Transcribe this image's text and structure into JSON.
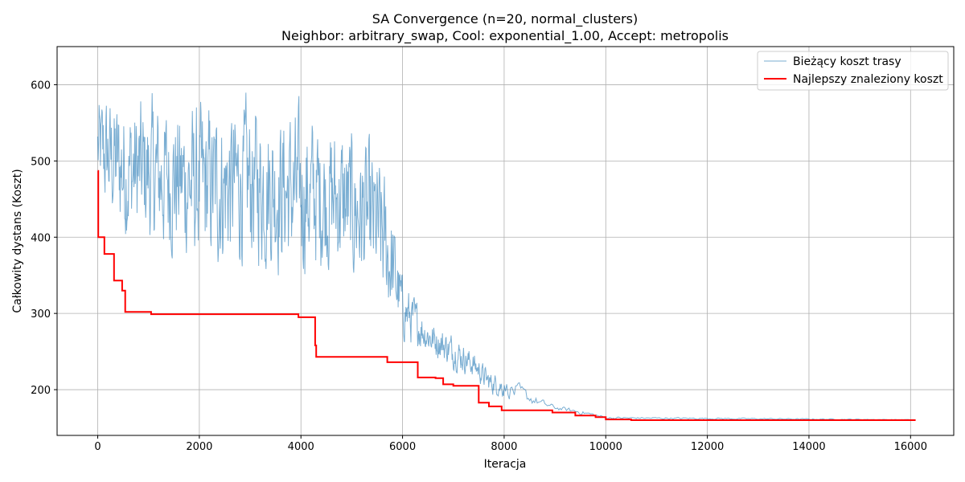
{
  "chart_data": {
    "type": "line",
    "title_line1": "SA Convergence (n=20, normal_clusters)",
    "title_line2": "Neighbor: arbitrary_swap, Cool: exponential_1.00, Accept: metropolis",
    "xlabel": "Iteracja",
    "ylabel": "Całkowity dystans (Koszt)",
    "xlim": [
      -800,
      16850
    ],
    "ylim": [
      140,
      650
    ],
    "xticks": [
      0,
      2000,
      4000,
      6000,
      8000,
      10000,
      12000,
      14000,
      16000
    ],
    "yticks": [
      200,
      300,
      400,
      500,
      600
    ],
    "grid": true,
    "legend_position": "top-right",
    "series": [
      {
        "name": "Bieżący koszt trasy",
        "color": "#1f77b4",
        "style": "thin-noisy",
        "envelope": [
          {
            "x": 0,
            "low": 420,
            "high": 610
          },
          {
            "x": 500,
            "low": 360,
            "high": 620
          },
          {
            "x": 1000,
            "low": 350,
            "high": 615
          },
          {
            "x": 1500,
            "low": 340,
            "high": 612
          },
          {
            "x": 2000,
            "low": 320,
            "high": 610
          },
          {
            "x": 2500,
            "low": 320,
            "high": 612
          },
          {
            "x": 3000,
            "low": 330,
            "high": 612
          },
          {
            "x": 3500,
            "low": 320,
            "high": 608
          },
          {
            "x": 4000,
            "low": 310,
            "high": 600
          },
          {
            "x": 4300,
            "low": 320,
            "high": 590
          },
          {
            "x": 4700,
            "low": 320,
            "high": 580
          },
          {
            "x": 5000,
            "low": 300,
            "high": 575
          },
          {
            "x": 5300,
            "low": 290,
            "high": 560
          },
          {
            "x": 5600,
            "low": 270,
            "high": 530
          },
          {
            "x": 5800,
            "low": 260,
            "high": 460
          },
          {
            "x": 6000,
            "low": 250,
            "high": 360
          },
          {
            "x": 6500,
            "low": 240,
            "high": 300
          },
          {
            "x": 7000,
            "low": 220,
            "high": 280
          },
          {
            "x": 7400,
            "low": 210,
            "high": 255
          },
          {
            "x": 7700,
            "low": 190,
            "high": 230
          },
          {
            "x": 8200,
            "low": 180,
            "high": 215
          },
          {
            "x": 8700,
            "low": 175,
            "high": 190
          },
          {
            "x": 9000,
            "low": 172,
            "high": 180
          },
          {
            "x": 9500,
            "low": 166,
            "high": 175
          },
          {
            "x": 10000,
            "low": 161,
            "high": 165
          },
          {
            "x": 16100,
            "low": 160,
            "high": 161
          }
        ]
      },
      {
        "name": "Najlepszy znaleziony koszt",
        "color": "#ff0000",
        "style": "step",
        "x": [
          0,
          10,
          130,
          320,
          480,
          540,
          1050,
          3950,
          4280,
          4300,
          5700,
          6300,
          6650,
          6800,
          7000,
          7500,
          7700,
          7950,
          8950,
          9400,
          9800,
          10000,
          10500,
          16100
        ],
        "y": [
          487,
          400,
          378,
          343,
          330,
          302,
          299,
          295,
          258,
          243,
          236,
          216,
          215,
          207,
          205,
          183,
          178,
          173,
          170,
          166,
          164,
          161,
          160,
          160
        ]
      }
    ]
  }
}
